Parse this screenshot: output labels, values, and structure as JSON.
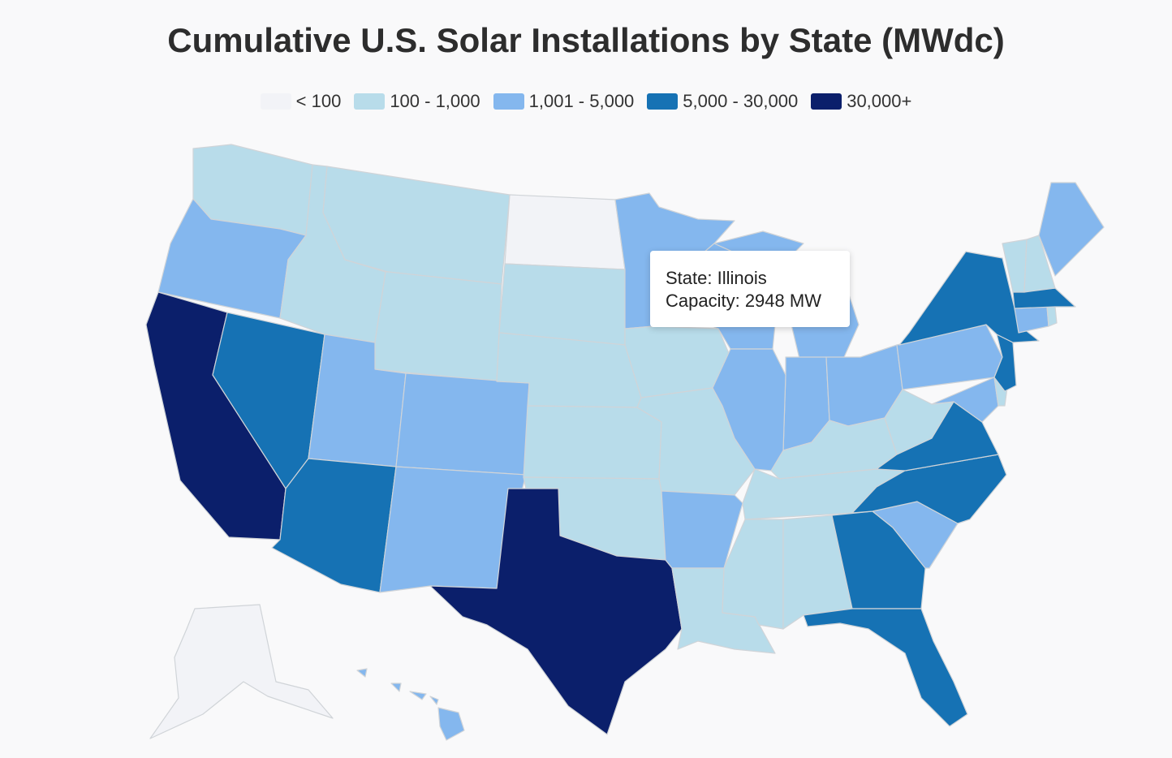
{
  "title": "Cumulative U.S. Solar Installations by State (MWdc)",
  "legend": [
    {
      "label": "< 100",
      "color": "#f2f3f7"
    },
    {
      "label": "100 - 1,000",
      "color": "#b8dcea"
    },
    {
      "label": "1,001 - 5,000",
      "color": "#84b7ee"
    },
    {
      "label": "5,000 - 30,000",
      "color": "#1672b4"
    },
    {
      "label": "30,000+",
      "color": "#0b1f6b"
    }
  ],
  "highlight_color": "#5cc8ea",
  "tooltip": {
    "state_line": "State: Illinois",
    "capacity_line": "Capacity: 2948 MW"
  },
  "chart_data": {
    "type": "choropleth",
    "title": "Cumulative U.S. Solar Installations by State (MWdc)",
    "unit": "MWdc",
    "bins": [
      "< 100",
      "100 - 1,000",
      "1,001 - 5,000",
      "5,000 - 30,000",
      "30,000+"
    ],
    "states": [
      {
        "code": "CA",
        "name": "California",
        "bin": 4
      },
      {
        "code": "TX",
        "name": "Texas",
        "bin": 4
      },
      {
        "code": "NV",
        "name": "Nevada",
        "bin": 3
      },
      {
        "code": "AZ",
        "name": "Arizona",
        "bin": 3
      },
      {
        "code": "GA",
        "name": "Georgia",
        "bin": 3
      },
      {
        "code": "FL",
        "name": "Florida",
        "bin": 3
      },
      {
        "code": "NC",
        "name": "North Carolina",
        "bin": 3
      },
      {
        "code": "VA",
        "name": "Virginia",
        "bin": 3
      },
      {
        "code": "NY",
        "name": "New York",
        "bin": 3
      },
      {
        "code": "NJ",
        "name": "New Jersey",
        "bin": 3
      },
      {
        "code": "MA",
        "name": "Massachusetts",
        "bin": 3
      },
      {
        "code": "OR",
        "name": "Oregon",
        "bin": 2
      },
      {
        "code": "UT",
        "name": "Utah",
        "bin": 2
      },
      {
        "code": "CO",
        "name": "Colorado",
        "bin": 2
      },
      {
        "code": "NM",
        "name": "New Mexico",
        "bin": 2
      },
      {
        "code": "MN",
        "name": "Minnesota",
        "bin": 2
      },
      {
        "code": "WI",
        "name": "Wisconsin",
        "bin": 2
      },
      {
        "code": "IL",
        "name": "Illinois",
        "bin": 2,
        "capacity_mw": 2948
      },
      {
        "code": "IN",
        "name": "Indiana",
        "bin": 2
      },
      {
        "code": "MI",
        "name": "Michigan",
        "bin": 2
      },
      {
        "code": "OH",
        "name": "Ohio",
        "bin": 2
      },
      {
        "code": "PA",
        "name": "Pennsylvania",
        "bin": 2
      },
      {
        "code": "AR",
        "name": "Arkansas",
        "bin": 2
      },
      {
        "code": "SC",
        "name": "South Carolina",
        "bin": 2
      },
      {
        "code": "MD",
        "name": "Maryland",
        "bin": 2
      },
      {
        "code": "CT",
        "name": "Connecticut",
        "bin": 2
      },
      {
        "code": "ME",
        "name": "Maine",
        "bin": 2
      },
      {
        "code": "HI",
        "name": "Hawaii",
        "bin": 2
      },
      {
        "code": "WA",
        "name": "Washington",
        "bin": 1
      },
      {
        "code": "ID",
        "name": "Idaho",
        "bin": 1
      },
      {
        "code": "MT",
        "name": "Montana",
        "bin": 1
      },
      {
        "code": "WY",
        "name": "Wyoming",
        "bin": 1
      },
      {
        "code": "SD",
        "name": "South Dakota",
        "bin": 1
      },
      {
        "code": "NE",
        "name": "Nebraska",
        "bin": 1
      },
      {
        "code": "KS",
        "name": "Kansas",
        "bin": 1
      },
      {
        "code": "OK",
        "name": "Oklahoma",
        "bin": 1
      },
      {
        "code": "IA",
        "name": "Iowa",
        "bin": 1
      },
      {
        "code": "MO",
        "name": "Missouri",
        "bin": 1
      },
      {
        "code": "LA",
        "name": "Louisiana",
        "bin": 1
      },
      {
        "code": "MS",
        "name": "Mississippi",
        "bin": 1
      },
      {
        "code": "AL",
        "name": "Alabama",
        "bin": 1
      },
      {
        "code": "TN",
        "name": "Tennessee",
        "bin": 1
      },
      {
        "code": "KY",
        "name": "Kentucky",
        "bin": 1
      },
      {
        "code": "WV",
        "name": "West Virginia",
        "bin": 1
      },
      {
        "code": "DE",
        "name": "Delaware",
        "bin": 1
      },
      {
        "code": "VT",
        "name": "Vermont",
        "bin": 1
      },
      {
        "code": "NH",
        "name": "New Hampshire",
        "bin": 1
      },
      {
        "code": "RI",
        "name": "Rhode Island",
        "bin": 1
      },
      {
        "code": "ND",
        "name": "North Dakota",
        "bin": 0
      },
      {
        "code": "AK",
        "name": "Alaska",
        "bin": 0
      }
    ]
  }
}
